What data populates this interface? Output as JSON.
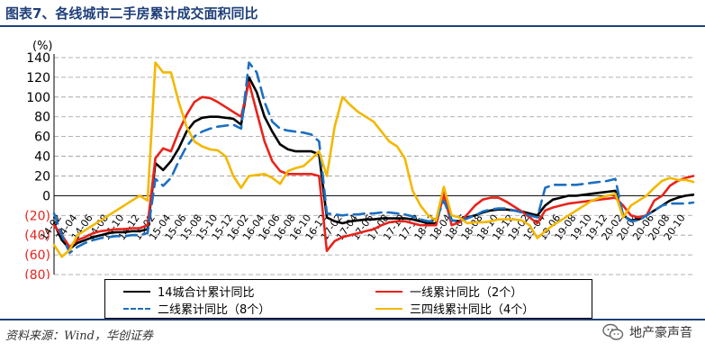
{
  "title": "图表7、各线城市二手房累计成交面积同比",
  "source": "资料来源：Wind，华创证券",
  "brand": "地产豪声音",
  "chart_data": {
    "type": "line",
    "unit_label": "(%)",
    "ylim": [
      -80,
      140
    ],
    "yticks": [
      -80,
      -60,
      -40,
      -20,
      0,
      20,
      40,
      60,
      80,
      100,
      120,
      140
    ],
    "ytick_labels": [
      "(80)",
      "(60)",
      "(40)",
      "(20)",
      "0",
      "20",
      "40",
      "60",
      "80",
      "100",
      "120",
      "140"
    ],
    "negative_tick_color": "#e8231b",
    "grid": "horizontal-dashed",
    "x_start_label": "2014-01",
    "x_count": 83,
    "x_tick_labels": [
      "14-02",
      "14-04",
      "14-06",
      "14-08",
      "14-10",
      "14-12",
      "15-02",
      "15-04",
      "15-06",
      "15-08",
      "15-10",
      "15-12",
      "16-02",
      "16-04",
      "16-06",
      "16-08",
      "16-10",
      "16-12",
      "17-02",
      "17-04",
      "17-06",
      "17-08",
      "17-10",
      "17-12",
      "18-02",
      "18-04",
      "18-06",
      "18-08",
      "18-10",
      "18-12",
      "19-02",
      "19-04",
      "19-06",
      "19-08",
      "19-10",
      "19-12",
      "20-02",
      "20-04",
      "20-06",
      "20-08",
      "20-10"
    ],
    "series": [
      {
        "name": "14城合计累计同比",
        "color": "#000000",
        "dash": "solid",
        "values": [
          -28,
          -45,
          -54,
          -48,
          -45,
          -42,
          -40,
          -38,
          -37,
          -37,
          -36,
          -36,
          -34,
          33,
          26,
          35,
          48,
          65,
          75,
          79,
          80,
          80,
          79,
          78,
          72,
          120,
          105,
          80,
          65,
          52,
          47,
          45,
          45,
          45,
          42,
          -22,
          -26,
          -28,
          -26,
          -25,
          -24,
          -24,
          -23,
          -23,
          -23,
          -23,
          -24,
          -26,
          -28,
          -28,
          3,
          -25,
          -26,
          -22,
          -20,
          -17,
          -15,
          -14,
          -14,
          -15,
          -16,
          -18,
          -20,
          -10,
          -4,
          -2,
          0,
          0,
          1,
          2,
          3,
          4,
          5,
          -20,
          -25,
          -24,
          -20,
          -15,
          -10,
          -5,
          -2,
          0,
          1
        ]
      },
      {
        "name": "一线累计同比（2个）",
        "color": "#e8231b",
        "dash": "solid",
        "values": [
          -30,
          -40,
          -52,
          -45,
          -42,
          -38,
          -36,
          -35,
          -34,
          -34,
          -33,
          -33,
          -30,
          38,
          48,
          45,
          65,
          82,
          95,
          100,
          99,
          95,
          90,
          85,
          80,
          115,
          85,
          55,
          35,
          25,
          22,
          22,
          22,
          22,
          20,
          -56,
          -46,
          -42,
          -40,
          -38,
          -36,
          -34,
          -30,
          -27,
          -26,
          -26,
          -28,
          -30,
          -30,
          -30,
          2,
          -30,
          -27,
          -19,
          -10,
          -4,
          -2,
          -2,
          -6,
          -11,
          -16,
          -22,
          -28,
          -15,
          -12,
          -10,
          -8,
          -7,
          -6,
          -5,
          -4,
          -3,
          -2,
          -10,
          -20,
          -22,
          -20,
          -5,
          0,
          10,
          15,
          18,
          20
        ]
      },
      {
        "name": "二线累计同比（8个）",
        "color": "#1c6fc0",
        "dash": "dashed",
        "values": [
          -18,
          -40,
          -58,
          -52,
          -48,
          -45,
          -43,
          -42,
          -41,
          -41,
          -40,
          -40,
          -38,
          17,
          10,
          18,
          35,
          50,
          60,
          65,
          68,
          70,
          71,
          72,
          68,
          135,
          125,
          95,
          75,
          68,
          66,
          65,
          64,
          62,
          55,
          -18,
          -19,
          -20,
          -19,
          -19,
          -18,
          -18,
          -17,
          -17,
          -18,
          -19,
          -21,
          -24,
          -26,
          -25,
          -5,
          -25,
          -26,
          -23,
          -20,
          -16,
          -14,
          -13,
          -13,
          -15,
          -17,
          -20,
          -22,
          8,
          11,
          11,
          11,
          11,
          12,
          13,
          14,
          15,
          17,
          -20,
          -26,
          -25,
          -20,
          -15,
          -10,
          -8,
          -8,
          -8,
          -7
        ]
      },
      {
        "name": "三四线累计同比（4个）",
        "color": "#f3b800",
        "dash": "solid",
        "values": [
          -50,
          -62,
          -55,
          -40,
          -35,
          -30,
          -25,
          -20,
          -15,
          -10,
          -5,
          0,
          -5,
          135,
          125,
          125,
          95,
          70,
          55,
          50,
          47,
          46,
          40,
          20,
          8,
          20,
          21,
          22,
          18,
          12,
          25,
          28,
          30,
          37,
          45,
          20,
          70,
          100,
          92,
          85,
          80,
          75,
          65,
          55,
          50,
          38,
          5,
          -10,
          -20,
          -25,
          9,
          -20,
          -22,
          -28,
          -27,
          -27,
          -26,
          -24,
          -24,
          -24,
          -25,
          -30,
          -43,
          -36,
          -30,
          -25,
          -20,
          -15,
          -10,
          -5,
          -2,
          0,
          2,
          -22,
          -10,
          -5,
          0,
          8,
          15,
          18,
          16,
          16,
          14
        ]
      }
    ]
  },
  "legend": {
    "items": [
      "14城合计累计同比",
      "一线累计同比（2个）",
      "二线累计同比（8个）",
      "三四线累计同比（4个）"
    ]
  }
}
